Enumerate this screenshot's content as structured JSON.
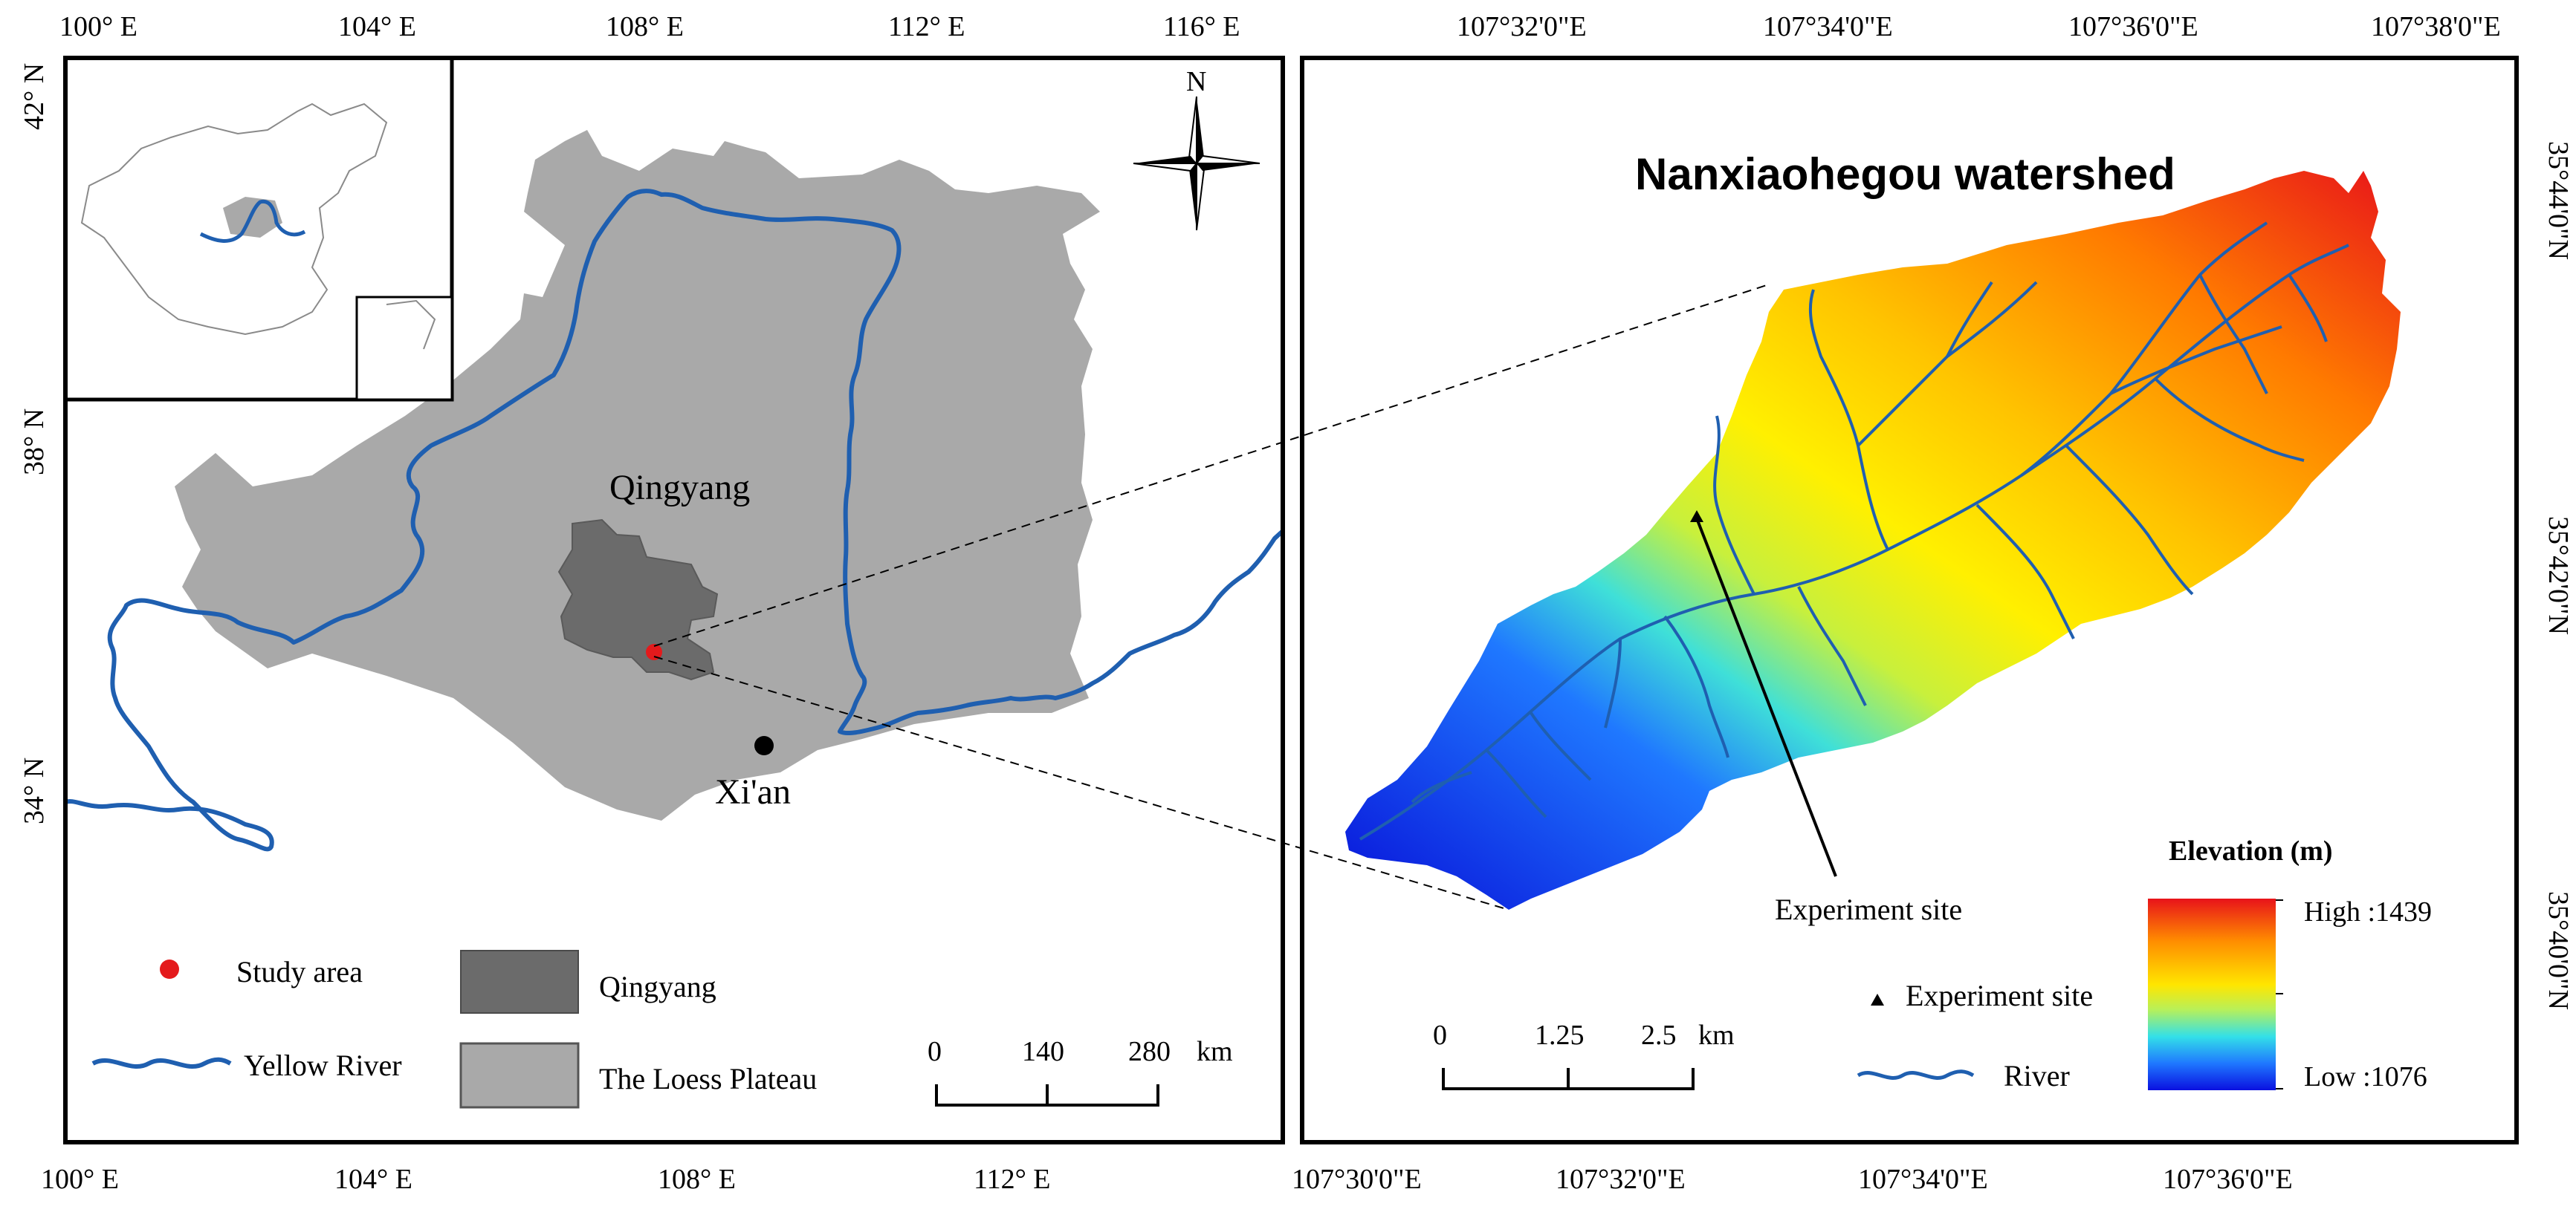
{
  "left_map": {
    "top_ticks": [
      "100° E",
      "104° E",
      "108° E",
      "112° E",
      "116° E"
    ],
    "bottom_ticks": [
      "100° E",
      "104° E",
      "108° E",
      "112° E",
      "116° E"
    ],
    "left_ticks": [
      "42° N",
      "38° N",
      "34° N"
    ],
    "north_label": "N",
    "places": {
      "qingyang": "Qingyang",
      "xian": "Xi'an"
    },
    "legend": {
      "study_area": "Study area",
      "yellow_river": "Yellow River",
      "qingyang": "Qingyang",
      "loess_plateau": "The Loess Plateau"
    },
    "scale": {
      "ticks": [
        "0",
        "140",
        "280"
      ],
      "unit": "km"
    },
    "colors": {
      "loess_plateau": "#a9a9a9",
      "qingyang": "#6b6b6b",
      "river": "#1f5fb0",
      "study_area": "#e41a1c"
    }
  },
  "right_map": {
    "title": "Nanxiaohegou watershed",
    "top_ticks": [
      "107°32'0\"E",
      "107°34'0\"E",
      "107°36'0\"E",
      "107°38'0\"E"
    ],
    "bottom_ticks": [
      "107°30'0\"E",
      "107°32'0\"E",
      "107°34'0\"E",
      "107°36'0\"E"
    ],
    "right_ticks": [
      "35°44'0\"N",
      "35°42'0\"N",
      "35°40'0\"N"
    ],
    "experiment_site_label": "Experiment site",
    "legend": {
      "elevation_title": "Elevation (m)",
      "high": "High :1439",
      "low": "Low :1076",
      "experiment_site": "Experiment site",
      "river": "River"
    },
    "scale": {
      "ticks": [
        "0",
        "1.25",
        "2.5"
      ],
      "unit": "km"
    },
    "elevation": {
      "high": 1439,
      "low": 1076,
      "ramp_colors": [
        "#e8131a",
        "#ff8c00",
        "#ffe600",
        "#b7f05a",
        "#33e0e8",
        "#1f78ff",
        "#0a10e0"
      ]
    }
  }
}
